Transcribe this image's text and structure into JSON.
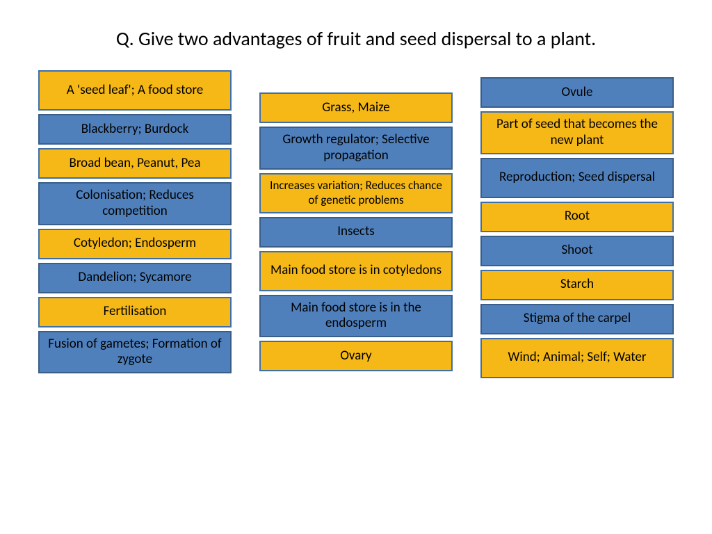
{
  "title": "Q. Give two advantages of fruit and seed dispersal to a plant.",
  "colors": {
    "yellow_bg": "#f6b817",
    "yellow_border": "#3f6fa8",
    "yellow_text": "#000000",
    "blue_bg": "#4f80bc",
    "blue_border": "#3a5e8a",
    "blue_text": "#000000"
  },
  "columns": [
    {
      "class": "col-1",
      "tiles": [
        {
          "text": "A 'seed leaf'; A food store",
          "style": "yellow",
          "lines": 2
        },
        {
          "text": "Blackberry; Burdock",
          "style": "blue",
          "lines": 1
        },
        {
          "text": "Broad bean, Peanut, Pea",
          "style": "yellow",
          "lines": 1
        },
        {
          "text": "Colonisation; Reduces competition",
          "style": "blue",
          "lines": 2
        },
        {
          "text": "Cotyledon; Endosperm",
          "style": "yellow",
          "lines": 1
        },
        {
          "text": "Dandelion; Sycamore",
          "style": "blue",
          "lines": 1
        },
        {
          "text": "Fertilisation",
          "style": "yellow",
          "lines": 1
        },
        {
          "text": "Fusion of gametes; Formation of zygote",
          "style": "blue",
          "lines": 2
        }
      ]
    },
    {
      "class": "col-2",
      "tiles": [
        {
          "text": "Grass, Maize",
          "style": "yellow",
          "lines": 1
        },
        {
          "text": "Growth regulator; Selective propagation",
          "style": "blue",
          "lines": 2
        },
        {
          "text": "Increases variation; Reduces chance of genetic problems",
          "style": "yellow",
          "lines": 2,
          "small": true
        },
        {
          "text": "Insects",
          "style": "blue",
          "lines": 1
        },
        {
          "text": "Main food store is in cotyledons",
          "style": "yellow",
          "lines": 2
        },
        {
          "text": "Main food store is in the endosperm",
          "style": "blue",
          "lines": 2
        },
        {
          "text": "Ovary",
          "style": "yellow",
          "lines": 1
        }
      ]
    },
    {
      "class": "col-3",
      "tiles": [
        {
          "text": "Ovule",
          "style": "blue",
          "lines": 1
        },
        {
          "text": "Part of seed that becomes the new plant",
          "style": "yellow",
          "lines": 2
        },
        {
          "text": "Reproduction; Seed dispersal",
          "style": "blue",
          "lines": 2
        },
        {
          "text": "Root",
          "style": "yellow",
          "lines": 1
        },
        {
          "text": "Shoot",
          "style": "blue",
          "lines": 1
        },
        {
          "text": "Starch",
          "style": "yellow",
          "lines": 1
        },
        {
          "text": "Stigma of the carpel",
          "style": "blue",
          "lines": 1
        },
        {
          "text": "Wind; Animal; Self; Water",
          "style": "yellow",
          "lines": 2
        }
      ]
    }
  ]
}
